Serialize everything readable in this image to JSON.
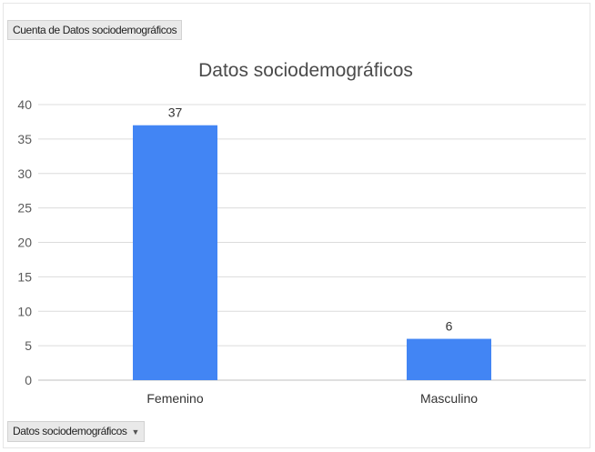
{
  "pivot": {
    "value_field": "Cuenta de Datos sociodemográficos",
    "axis_field": "Datos sociodemográficos",
    "axis_field_arrow": "▼"
  },
  "colors": {
    "bar": "#4285f4"
  },
  "chart_data": {
    "type": "bar",
    "title": "Datos sociodemográficos",
    "categories": [
      "Femenino",
      "Masculino"
    ],
    "values": [
      37,
      6
    ],
    "data_labels": [
      "37",
      "6"
    ],
    "ylim": [
      0,
      40
    ],
    "yticks": [
      0,
      5,
      10,
      15,
      20,
      25,
      30,
      35,
      40
    ],
    "grid": true,
    "legend": "none"
  }
}
